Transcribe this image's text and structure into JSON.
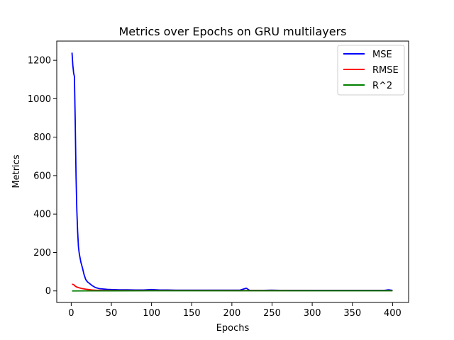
{
  "chart_data": {
    "type": "line",
    "title": "Metrics over Epochs on GRU multilayers",
    "xlabel": "Epochs",
    "ylabel": "Metrics",
    "xlim": [
      -18,
      420
    ],
    "ylim": [
      -60,
      1300
    ],
    "xticks": [
      0,
      50,
      100,
      150,
      200,
      250,
      300,
      350,
      400
    ],
    "yticks": [
      0,
      200,
      400,
      600,
      800,
      1000,
      1200
    ],
    "grid": false,
    "legend_position": "top-right",
    "series": [
      {
        "name": "MSE",
        "color": "#0000ff",
        "points": [
          [
            1,
            1240
          ],
          [
            2,
            1175
          ],
          [
            3,
            1135
          ],
          [
            4,
            1115
          ],
          [
            5,
            880
          ],
          [
            6,
            600
          ],
          [
            7,
            420
          ],
          [
            8,
            310
          ],
          [
            9,
            230
          ],
          [
            10,
            195
          ],
          [
            12,
            150
          ],
          [
            14,
            120
          ],
          [
            16,
            85
          ],
          [
            18,
            60
          ],
          [
            20,
            48
          ],
          [
            23,
            38
          ],
          [
            26,
            28
          ],
          [
            30,
            18
          ],
          [
            35,
            12
          ],
          [
            40,
            10
          ],
          [
            45,
            8
          ],
          [
            50,
            7
          ],
          [
            60,
            6
          ],
          [
            70,
            6
          ],
          [
            80,
            5
          ],
          [
            90,
            5
          ],
          [
            100,
            7
          ],
          [
            110,
            5
          ],
          [
            120,
            5
          ],
          [
            130,
            4
          ],
          [
            140,
            4
          ],
          [
            150,
            4
          ],
          [
            160,
            4
          ],
          [
            170,
            4
          ],
          [
            180,
            4
          ],
          [
            190,
            4
          ],
          [
            200,
            4
          ],
          [
            210,
            4
          ],
          [
            218,
            14
          ],
          [
            222,
            3
          ],
          [
            230,
            3
          ],
          [
            240,
            3
          ],
          [
            250,
            4
          ],
          [
            260,
            3
          ],
          [
            270,
            3
          ],
          [
            280,
            3
          ],
          [
            290,
            3
          ],
          [
            300,
            3
          ],
          [
            310,
            3
          ],
          [
            320,
            3
          ],
          [
            330,
            3
          ],
          [
            340,
            3
          ],
          [
            350,
            3
          ],
          [
            360,
            3
          ],
          [
            370,
            3
          ],
          [
            380,
            3
          ],
          [
            390,
            3
          ],
          [
            395,
            6
          ],
          [
            400,
            3
          ]
        ]
      },
      {
        "name": "RMSE",
        "color": "#ff0000",
        "points": [
          [
            1,
            35
          ],
          [
            3,
            33
          ],
          [
            5,
            25
          ],
          [
            7,
            20
          ],
          [
            10,
            16
          ],
          [
            14,
            12
          ],
          [
            18,
            9
          ],
          [
            22,
            7
          ],
          [
            26,
            5
          ],
          [
            30,
            4
          ],
          [
            40,
            3
          ],
          [
            50,
            2.6
          ],
          [
            75,
            2.3
          ],
          [
            100,
            2.2
          ],
          [
            150,
            2.1
          ],
          [
            200,
            2
          ],
          [
            250,
            1.9
          ],
          [
            300,
            1.8
          ],
          [
            350,
            1.8
          ],
          [
            400,
            1.8
          ]
        ]
      },
      {
        "name": "R^2",
        "color": "#008000",
        "points": [
          [
            1,
            0
          ],
          [
            50,
            0.6
          ],
          [
            100,
            0.8
          ],
          [
            150,
            0.85
          ],
          [
            200,
            0.9
          ],
          [
            250,
            0.9
          ],
          [
            300,
            0.92
          ],
          [
            350,
            0.93
          ],
          [
            400,
            0.93
          ]
        ]
      }
    ]
  }
}
